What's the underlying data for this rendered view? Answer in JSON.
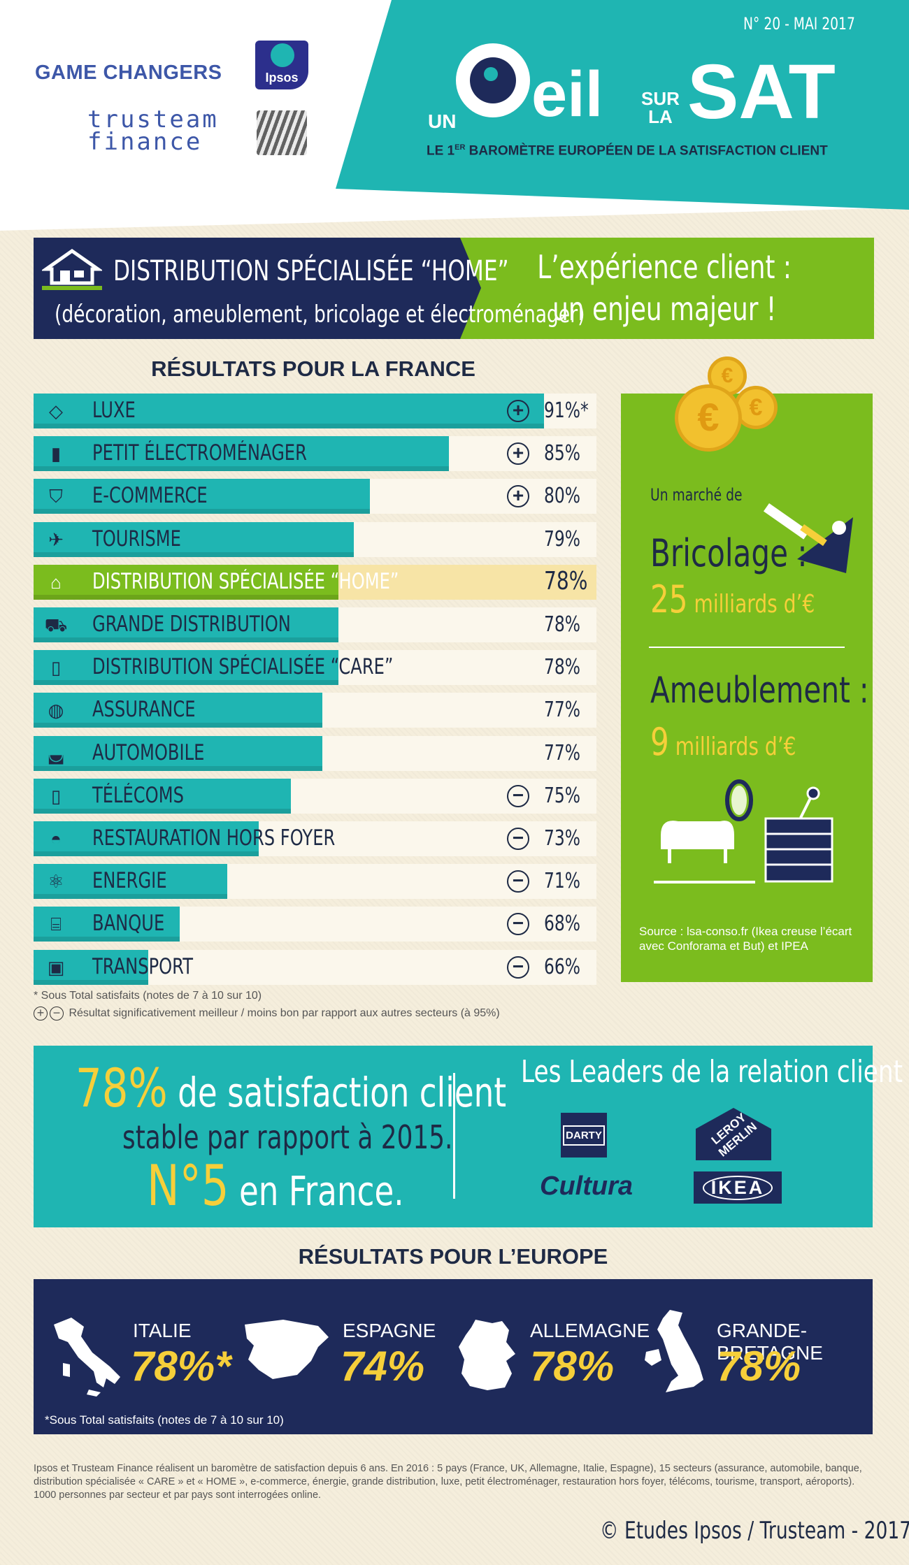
{
  "header": {
    "issue": "N° 20 - MAI 2017",
    "brand_game_changers": "GAME CHANGERS",
    "brand_ipsos": "Ipsos",
    "brand_trusteam_1": "trusteam",
    "brand_trusteam_2": "finance",
    "title_un": "UN",
    "title_eil": "eil",
    "title_sur": "SUR",
    "title_la": "LA",
    "title_sat": "SAT",
    "tagline_prefix": "LE 1",
    "tagline_sup": "ER",
    "tagline_rest": " BAROMÈTRE EUROPÉEN DE LA SATISFACTION CLIENT"
  },
  "banner": {
    "title": "DISTRIBUTION SPÉCIALISÉE “HOME”",
    "subtitle": "(décoration, ameublement, bricolage et électroménager)",
    "quote_line1": "L’expérience client :",
    "quote_line2": "un enjeu majeur !"
  },
  "france": {
    "title": "RÉSULTATS POUR LA FRANCE",
    "rows": [
      {
        "label": "LUXE",
        "value": 91,
        "value_text": "91%*",
        "sig": "+",
        "icon": "diamond-icon"
      },
      {
        "label": "PETIT ÉLECTROMÉNAGER",
        "value": 85,
        "value_text": "85%",
        "sig": "+",
        "icon": "appliance-icon"
      },
      {
        "label": "E-COMMERCE",
        "value": 80,
        "value_text": "80%",
        "sig": "+",
        "icon": "basket-icon"
      },
      {
        "label": "TOURISME",
        "value": 79,
        "value_text": "79%",
        "sig": "",
        "icon": "plane-icon"
      },
      {
        "label": "DISTRIBUTION SPÉCIALISÉE “HOME”",
        "value": 78,
        "value_text": "78%",
        "sig": "",
        "icon": "store-icon",
        "highlight": true
      },
      {
        "label": "GRANDE DISTRIBUTION",
        "value": 78,
        "value_text": "78%",
        "sig": "",
        "icon": "cart-icon"
      },
      {
        "label": "DISTRIBUTION SPÉCIALISÉE “CARE”",
        "value": 78,
        "value_text": "78%",
        "sig": "",
        "icon": "care-icon"
      },
      {
        "label": "ASSURANCE",
        "value": 77,
        "value_text": "77%",
        "sig": "",
        "icon": "globe-hands-icon"
      },
      {
        "label": "AUTOMOBILE",
        "value": 77,
        "value_text": "77%",
        "sig": "",
        "icon": "car-icon"
      },
      {
        "label": "TÉLÉCOMS",
        "value": 75,
        "value_text": "75%",
        "sig": "−",
        "icon": "phone-icon"
      },
      {
        "label": "RESTAURATION HORS FOYER",
        "value": 73,
        "value_text": "73%",
        "sig": "−",
        "icon": "cloche-icon"
      },
      {
        "label": "ENERGIE",
        "value": 71,
        "value_text": "71%",
        "sig": "−",
        "icon": "atom-icon"
      },
      {
        "label": "BANQUE",
        "value": 68,
        "value_text": "68%",
        "sig": "−",
        "icon": "bank-icon"
      },
      {
        "label": "TRANSPORT",
        "value": 66,
        "value_text": "66%",
        "sig": "−",
        "icon": "train-icon"
      }
    ],
    "note_total": "* Sous Total satisfaits (notes de 7 à 10 sur 10)",
    "note_sig": "Résultat significativement meilleur / moins bon par rapport aux autres secteurs (à 95%)",
    "note_plus": "+",
    "note_minus": "−"
  },
  "side": {
    "coin_symbol": "€",
    "market_label": "Un marché de",
    "bricolage_label": "Bricolage :",
    "bricolage_num": "25",
    "bricolage_unit": " milliards d’€",
    "ameublement_label": "Ameublement :",
    "ameublement_num": "9",
    "ameublement_unit": " milliards d’€",
    "source": "Source : lsa-conso.fr (Ikea creuse l’écart avec Conforama et But) et IPEA"
  },
  "summary": {
    "pct": "78%",
    "pct_rest": " de satisfaction client",
    "stable": "stable par rapport à 2015.",
    "rank": "N°5",
    "rank_rest": " en France.",
    "leaders_title": "Les Leaders de la relation client :",
    "leaders": [
      "DARTY",
      "LEROY MERLIN",
      "Cultura",
      "IKEA"
    ]
  },
  "europe": {
    "title": "RÉSULTATS POUR L’EUROPE",
    "countries": [
      {
        "name": "ITALIE",
        "value_text": "78%*"
      },
      {
        "name": "ESPAGNE",
        "value_text": "74%"
      },
      {
        "name": "ALLEMAGNE",
        "value_text": "78%"
      },
      {
        "name": "GRANDE-BRETAGNE",
        "value_text": "78%"
      }
    ],
    "note": "*Sous Total satisfaits (notes de 7 à 10 sur 10)"
  },
  "footer": {
    "text": "Ipsos et Trusteam Finance réalisent un baromètre de satisfaction depuis 6 ans. En 2016 : 5 pays (France, UK, Allemagne, Italie, Espagne), 15 secteurs (assurance, automobile, banque, distribution spécialisée « CARE » et « HOME », e-commerce, énergie, grande distribution, luxe, petit électroménager, restauration hors foyer, télécoms, tourisme, transport, aéroports). 1000 personnes par secteur et par pays sont interrogées online.",
    "copyright": "© Etudes Ipsos / Trusteam - 2017"
  },
  "colors": {
    "teal": "#1fb5b2",
    "navy": "#1e2a5a",
    "green": "#7bbc1e",
    "yellow": "#f6cf3a"
  }
}
